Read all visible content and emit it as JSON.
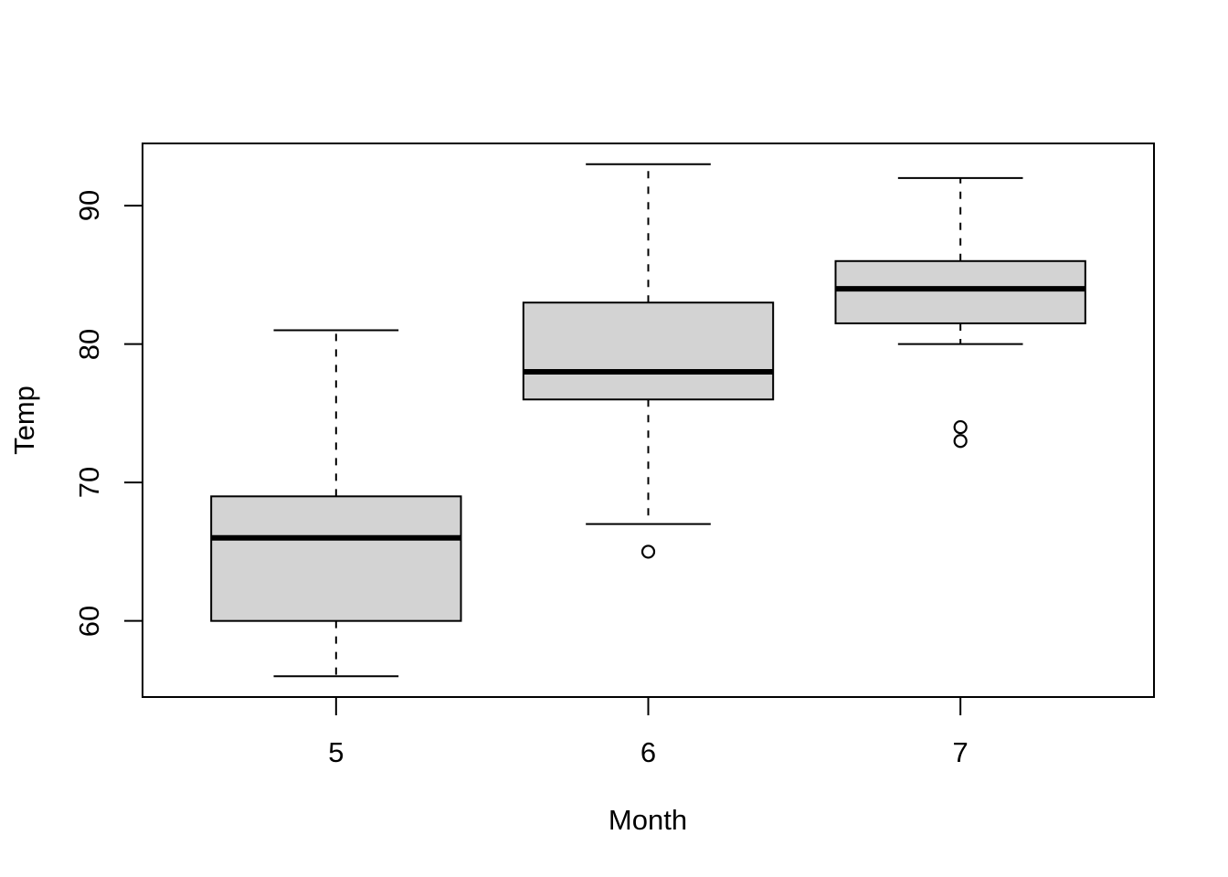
{
  "chart_data": {
    "type": "boxplot",
    "title": "",
    "xlabel": "Month",
    "ylabel": "Temp",
    "y_ticks": [
      60,
      70,
      80,
      90
    ],
    "ylim": [
      54.5,
      94.5
    ],
    "xlim": [
      0.38,
      3.62
    ],
    "grid": false,
    "legend": false,
    "box_width": 0.8,
    "cap_width": 0.4,
    "groups": [
      {
        "label": "5",
        "position": 1,
        "whisker_low": 56,
        "q1": 60,
        "median": 66,
        "q3": 69,
        "whisker_high": 81,
        "outliers": []
      },
      {
        "label": "6",
        "position": 2,
        "whisker_low": 67,
        "q1": 76,
        "median": 78,
        "q3": 83,
        "whisker_high": 93,
        "outliers": [
          65
        ]
      },
      {
        "label": "7",
        "position": 3,
        "whisker_low": 80,
        "q1": 81.5,
        "median": 84,
        "q3": 86,
        "whisker_high": 92,
        "outliers": [
          74,
          73
        ]
      }
    ],
    "colors": {
      "box_fill": "#d3d3d3",
      "line": "#000000",
      "background": "#ffffff"
    }
  }
}
